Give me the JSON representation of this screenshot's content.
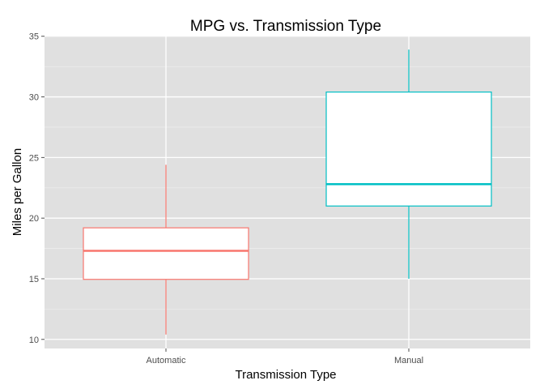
{
  "chart_data": {
    "type": "boxplot",
    "title": "MPG vs. Transmission Type",
    "xlabel": "Transmission Type",
    "ylabel": "Miles per Gallon",
    "categories": [
      "Automatic",
      "Manual"
    ],
    "boxes": [
      {
        "category": "Automatic",
        "min": 10.4,
        "q1": 14.95,
        "median": 17.3,
        "q3": 19.2,
        "max": 24.4,
        "color": "#F8766D"
      },
      {
        "category": "Manual",
        "min": 15.0,
        "q1": 21.0,
        "median": 22.8,
        "q3": 30.4,
        "max": 33.9,
        "color": "#00BFC4"
      }
    ],
    "ylim": [
      9.25,
      35.05
    ],
    "yticks": [
      10,
      15,
      20,
      25,
      30,
      35
    ],
    "ytick_labels": [
      "10",
      "15",
      "20",
      "25",
      "30",
      "35"
    ],
    "grid": true,
    "legend": "none",
    "panel_color": "#E0E0E0",
    "grid_color": "#FFFFFF",
    "box_fill": "#FFFFFF"
  }
}
